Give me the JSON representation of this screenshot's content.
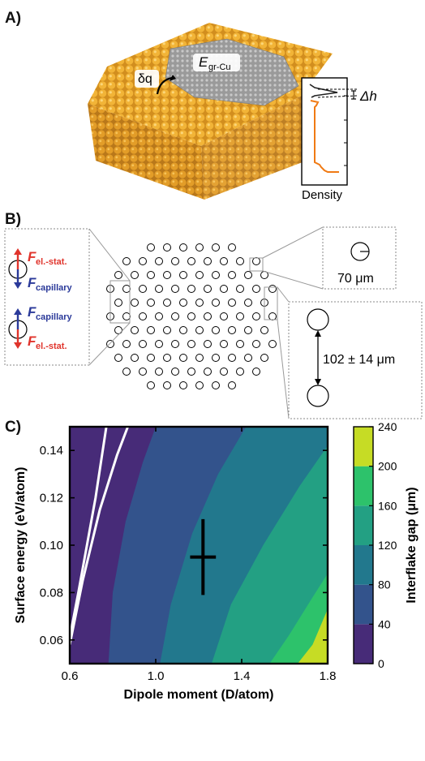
{
  "panels": {
    "a": {
      "label": "A)",
      "dq_symbol": "δq",
      "energy_symbol": "E",
      "energy_subscript": "gr-Cu",
      "dh_symbol": "Δh",
      "density_label": "Density",
      "colors": {
        "copper": "#e8a52a",
        "graphene": "#8a8a8a",
        "profile": "#f07a14"
      }
    },
    "b": {
      "label": "B)",
      "force_es": "F",
      "force_es_sub": "el.-stat.",
      "force_cap": "F",
      "force_cap_sub": "capillary",
      "diameter_label": "70 μm",
      "gap_label": "102 ± 14 μm",
      "colors": {
        "red": "#e0342c",
        "blue": "#2b3a9a"
      }
    },
    "c": {
      "label": "C)"
    }
  },
  "chart_data": {
    "type": "contour",
    "xlabel": "Dipole moment (D/atom)",
    "ylabel": "Surface energy (eV/atom)",
    "xlim": [
      0.6,
      1.8
    ],
    "ylim": [
      0.05,
      0.15
    ],
    "x_ticks": [
      "0.6",
      "1.0",
      "1.4",
      "1.8"
    ],
    "y_ticks": [
      "0.06",
      "0.08",
      "0.10",
      "0.12",
      "0.14"
    ],
    "colorbar": {
      "label": "Interflake gap (μm)",
      "ticks": [
        "0",
        "40",
        "80",
        "120",
        "160",
        "200",
        "240"
      ],
      "range": [
        0,
        240
      ],
      "levels": [
        0,
        40,
        80,
        120,
        160,
        200,
        240
      ],
      "colors": [
        "#472b78",
        "#33538c",
        "#22788d",
        "#23a083",
        "#2dc26b",
        "#c6dc25"
      ]
    },
    "data_point": {
      "x": 1.22,
      "y": 0.095,
      "x_err": 0.06,
      "y_err": 0.016
    },
    "white_contours": [
      {
        "points": [
          [
            0.6,
            0.061
          ],
          [
            0.64,
            0.08
          ],
          [
            0.68,
            0.1
          ],
          [
            0.72,
            0.12
          ],
          [
            0.77,
            0.15
          ]
        ]
      },
      {
        "points": [
          [
            0.6,
            0.058
          ],
          [
            0.66,
            0.085
          ],
          [
            0.74,
            0.115
          ],
          [
            0.82,
            0.138
          ],
          [
            0.87,
            0.15
          ]
        ]
      }
    ],
    "boundaries": [
      {
        "level": 40,
        "points": [
          [
            0.78,
            0.05
          ],
          [
            0.8,
            0.08
          ],
          [
            0.86,
            0.11
          ],
          [
            0.94,
            0.135
          ],
          [
            1.0,
            0.15
          ]
        ]
      },
      {
        "level": 80,
        "points": [
          [
            1.02,
            0.05
          ],
          [
            1.07,
            0.075
          ],
          [
            1.17,
            0.105
          ],
          [
            1.29,
            0.13
          ],
          [
            1.42,
            0.15
          ]
        ]
      },
      {
        "level": 120,
        "points": [
          [
            1.26,
            0.05
          ],
          [
            1.35,
            0.075
          ],
          [
            1.5,
            0.1
          ],
          [
            1.67,
            0.125
          ],
          [
            1.8,
            0.142
          ]
        ]
      },
      {
        "level": 160,
        "points": [
          [
            1.53,
            0.05
          ],
          [
            1.62,
            0.062
          ],
          [
            1.73,
            0.078
          ],
          [
            1.8,
            0.088
          ]
        ]
      },
      {
        "level": 200,
        "points": [
          [
            1.66,
            0.05
          ],
          [
            1.73,
            0.058
          ],
          [
            1.8,
            0.073
          ]
        ]
      }
    ]
  }
}
